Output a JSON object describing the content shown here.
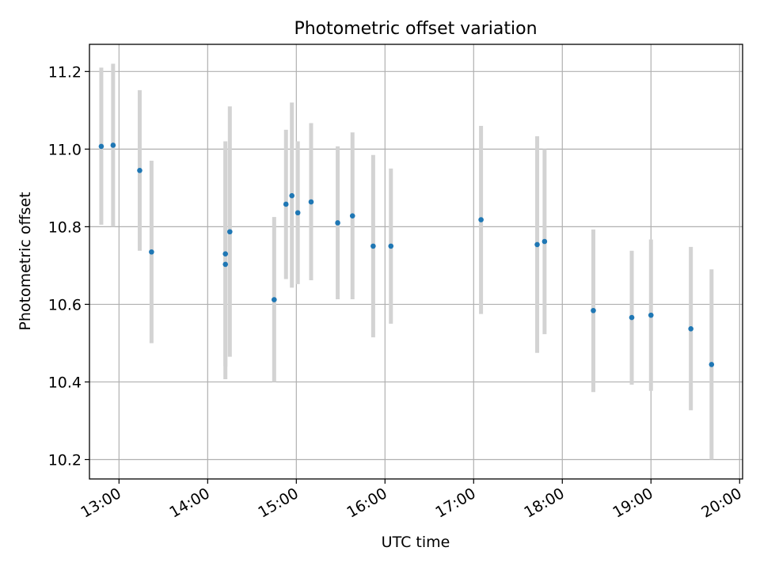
{
  "chart_data": {
    "type": "scatter",
    "title": "Photometric offset variation",
    "xlabel": "UTC time",
    "ylabel": "Photometric offset",
    "grid": true,
    "xlim": [
      "12:40",
      "20:02"
    ],
    "ylim": [
      10.15,
      11.27
    ],
    "x_ticks": [
      "13:00",
      "14:00",
      "15:00",
      "16:00",
      "17:00",
      "18:00",
      "19:00",
      "20:00"
    ],
    "y_ticks": [
      10.2,
      10.4,
      10.6,
      10.8,
      11.0,
      11.2
    ],
    "colors": {
      "points": "#1f77b4",
      "errorbars": "#d3d3d3",
      "grid": "#b0b0b0"
    },
    "series": [
      {
        "points": [
          {
            "x": "12:48",
            "y": 11.007,
            "err_low": 10.805,
            "err_high": 11.21
          },
          {
            "x": "12:56",
            "y": 11.01,
            "err_low": 10.8,
            "err_high": 11.22
          },
          {
            "x": "13:14",
            "y": 10.945,
            "err_low": 10.738,
            "err_high": 11.152
          },
          {
            "x": "13:22",
            "y": 10.735,
            "err_low": 10.5,
            "err_high": 10.97
          },
          {
            "x": "14:12",
            "y": 10.73,
            "err_low": 10.44,
            "err_high": 11.02
          },
          {
            "x": "14:12",
            "y": 10.703,
            "err_low": 10.407,
            "err_high": 11.0
          },
          {
            "x": "14:15",
            "y": 10.787,
            "err_low": 10.465,
            "err_high": 11.11
          },
          {
            "x": "14:45",
            "y": 10.612,
            "err_low": 10.4,
            "err_high": 10.825
          },
          {
            "x": "14:53",
            "y": 10.858,
            "err_low": 10.665,
            "err_high": 11.05
          },
          {
            "x": "14:57",
            "y": 10.88,
            "err_low": 10.643,
            "err_high": 11.12
          },
          {
            "x": "15:01",
            "y": 10.836,
            "err_low": 10.652,
            "err_high": 11.02
          },
          {
            "x": "15:10",
            "y": 10.864,
            "err_low": 10.662,
            "err_high": 11.067
          },
          {
            "x": "15:28",
            "y": 10.81,
            "err_low": 10.613,
            "err_high": 11.007
          },
          {
            "x": "15:38",
            "y": 10.828,
            "err_low": 10.613,
            "err_high": 11.043
          },
          {
            "x": "15:52",
            "y": 10.75,
            "err_low": 10.515,
            "err_high": 10.985
          },
          {
            "x": "16:04",
            "y": 10.75,
            "err_low": 10.55,
            "err_high": 10.95
          },
          {
            "x": "17:05",
            "y": 10.818,
            "err_low": 10.575,
            "err_high": 11.06
          },
          {
            "x": "17:43",
            "y": 10.754,
            "err_low": 10.475,
            "err_high": 11.033
          },
          {
            "x": "17:48",
            "y": 10.762,
            "err_low": 10.523,
            "err_high": 11.0
          },
          {
            "x": "18:21",
            "y": 10.584,
            "err_low": 10.374,
            "err_high": 10.793
          },
          {
            "x": "18:47",
            "y": 10.566,
            "err_low": 10.393,
            "err_high": 10.738
          },
          {
            "x": "19:00",
            "y": 10.572,
            "err_low": 10.377,
            "err_high": 10.767
          },
          {
            "x": "19:27",
            "y": 10.537,
            "err_low": 10.327,
            "err_high": 10.748
          },
          {
            "x": "19:41",
            "y": 10.445,
            "err_low": 10.2,
            "err_high": 10.69
          }
        ]
      }
    ]
  }
}
